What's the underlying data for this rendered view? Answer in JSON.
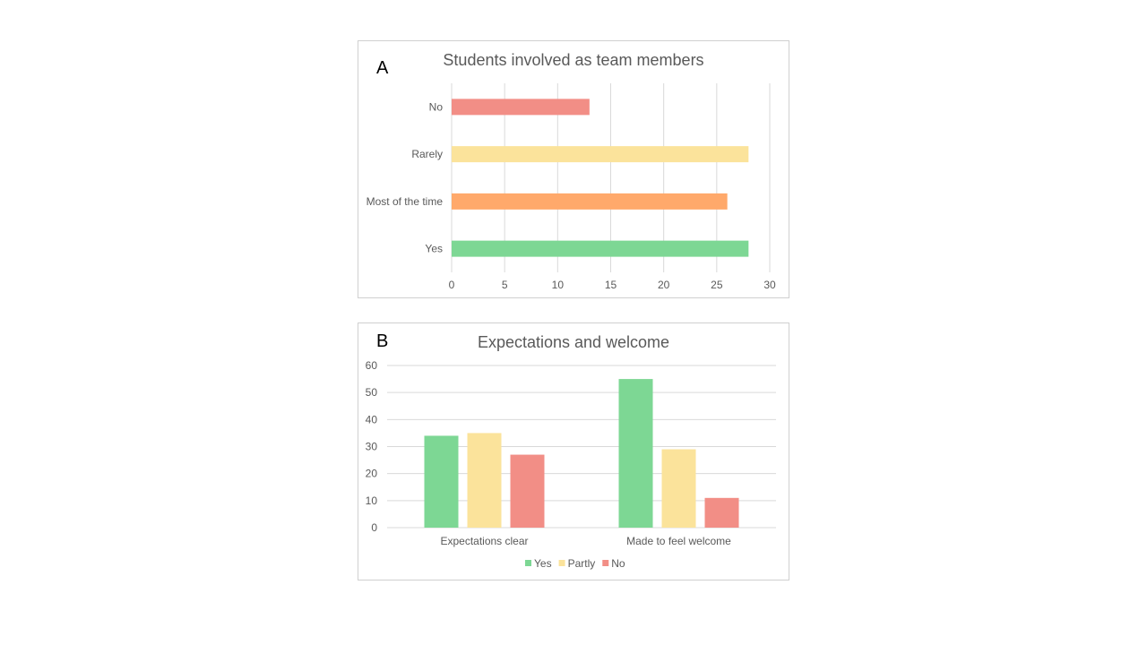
{
  "chart_data": [
    {
      "type": "bar",
      "orientation": "horizontal",
      "panel_label": "A",
      "title": "Students involved as team members",
      "categories": [
        "Yes",
        "Most of the time",
        "Rarely",
        "No"
      ],
      "values": [
        28,
        26,
        28,
        13
      ],
      "colors": [
        "#7dd794",
        "#ffa96b",
        "#fbe39b",
        "#f28e86"
      ],
      "xlim": [
        0,
        30
      ],
      "xticks": [
        0,
        5,
        10,
        15,
        20,
        25,
        30
      ],
      "grid": "vertical"
    },
    {
      "type": "bar",
      "orientation": "vertical",
      "panel_label": "B",
      "title": "Expectations and welcome",
      "categories": [
        "Expectations clear",
        "Made to feel welcome"
      ],
      "series": [
        {
          "name": "Yes",
          "values": [
            34,
            55
          ],
          "color": "#7dd794"
        },
        {
          "name": "Partly",
          "values": [
            35,
            29
          ],
          "color": "#fbe39b"
        },
        {
          "name": "No",
          "values": [
            27,
            11
          ],
          "color": "#f28e86"
        }
      ],
      "ylim": [
        0,
        60
      ],
      "yticks": [
        0,
        10,
        20,
        30,
        40,
        50,
        60
      ],
      "grid": "horizontal",
      "legend": "bottom"
    }
  ]
}
